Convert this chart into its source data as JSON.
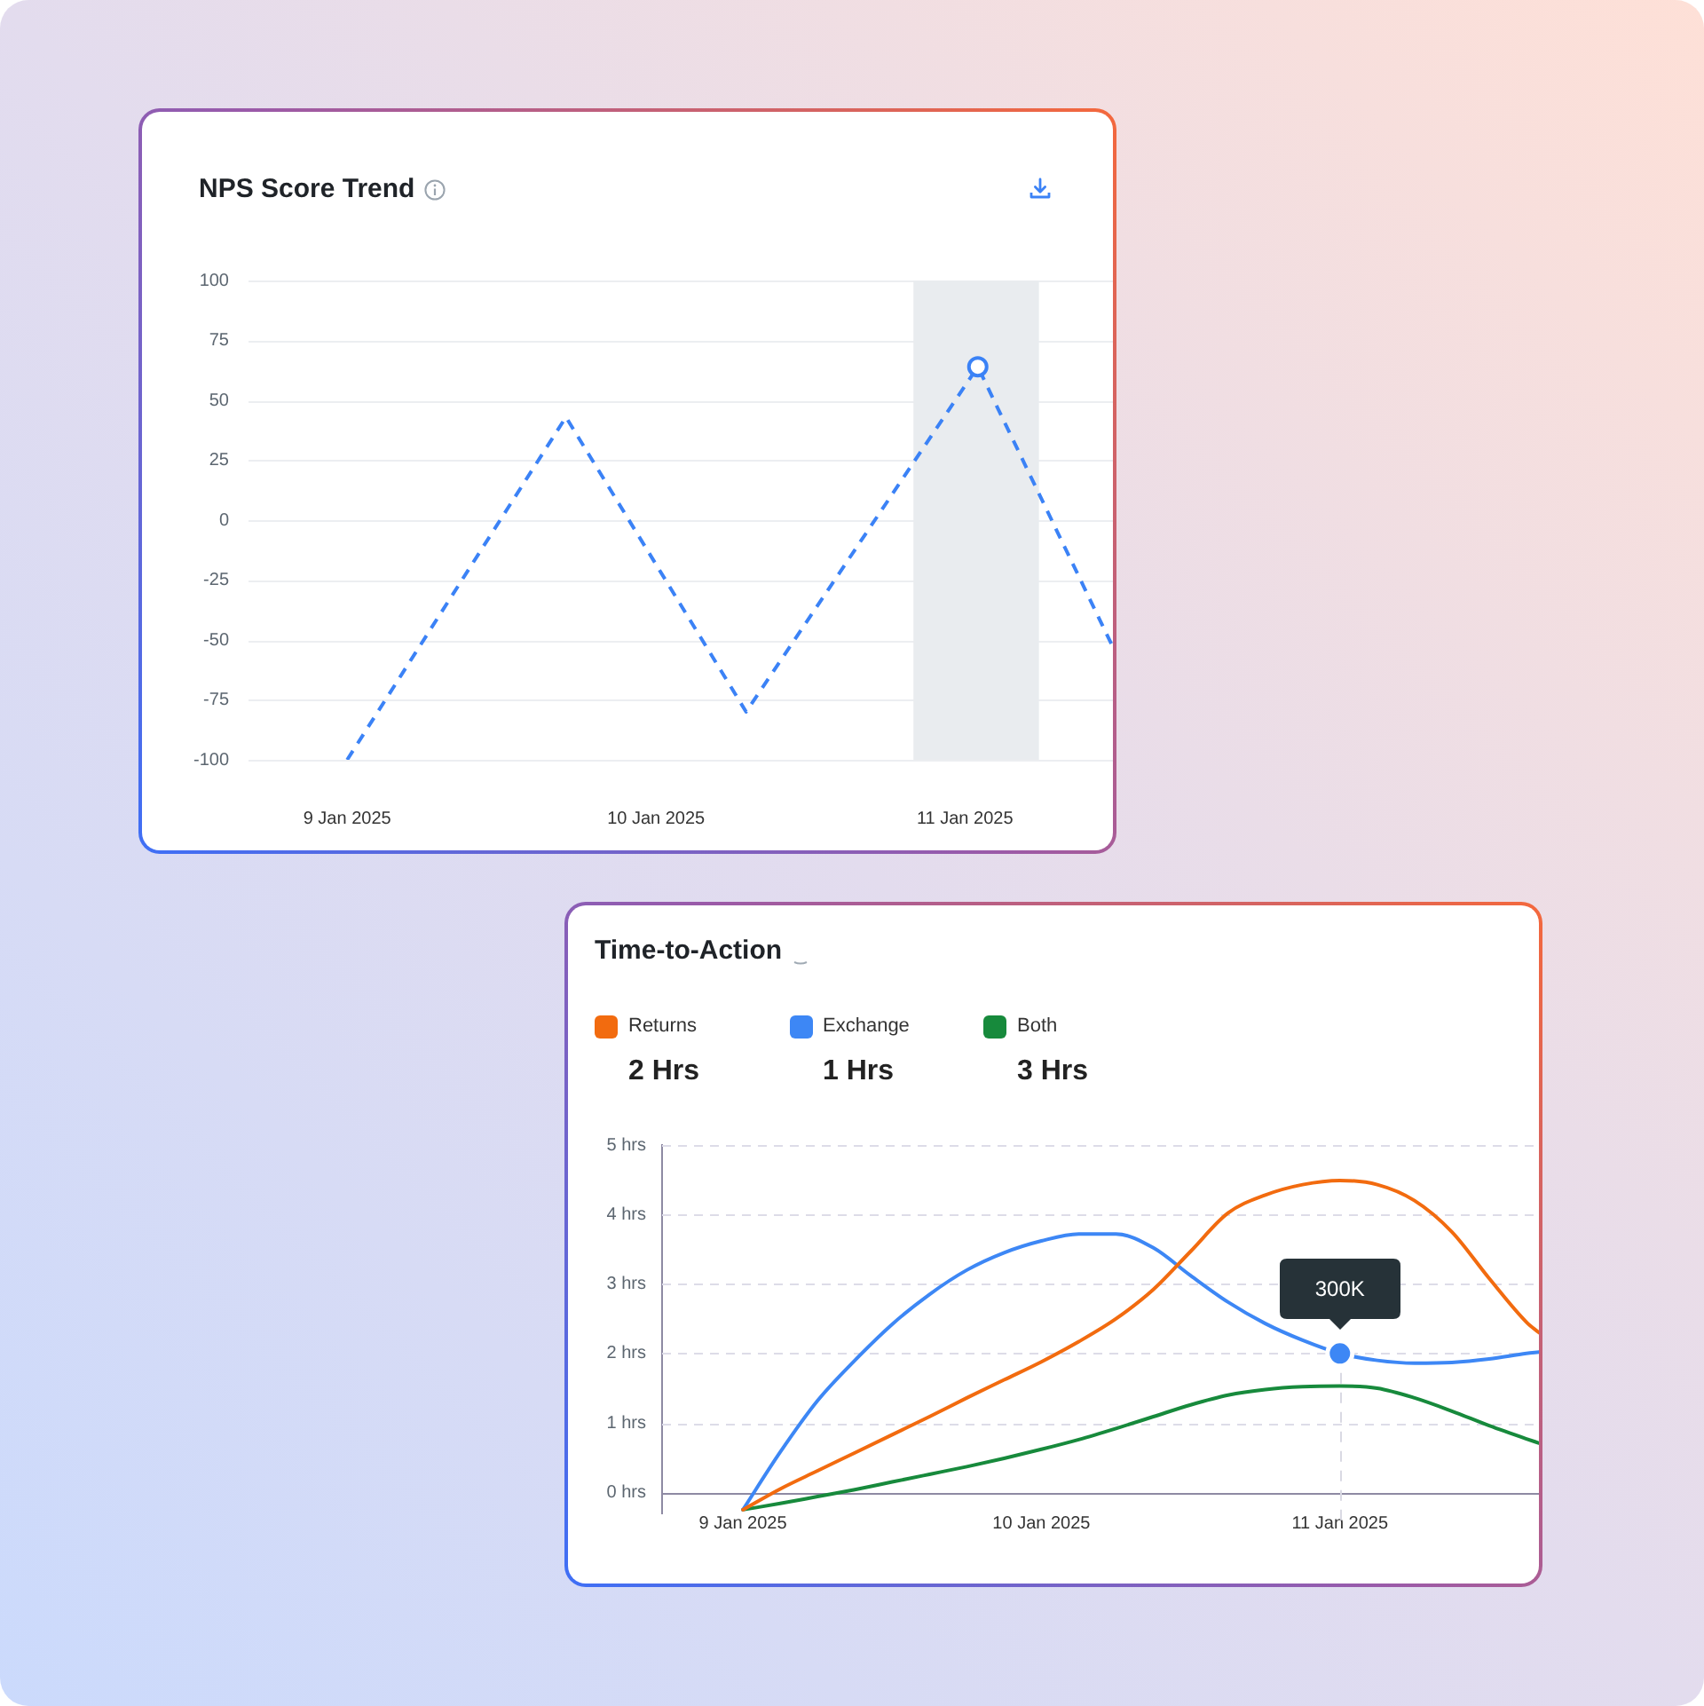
{
  "chart_data": [
    {
      "type": "line",
      "title": "NPS Score Trend",
      "x": [
        "2025-01-09T00:00",
        "2025-01-09T17:00",
        "2025-01-10T07:00",
        "2025-01-11T01:00",
        "2025-01-11T11:30"
      ],
      "series": [
        {
          "color": "#3b82f6",
          "values": [
            -100,
            43,
            -80,
            64,
            -53
          ]
        },
        {
          "type": "scatter",
          "color": "#3b82f6",
          "x": [
            "2025-01-11T01:00"
          ],
          "values": [
            64
          ],
          "marker": "circle"
        }
      ],
      "line_style": "dashed",
      "xlim": [
        "2025-01-08T16:20",
        "2025-01-11T11:30"
      ],
      "xticks": [
        {
          "value": "2025-01-09",
          "label": "9 Jan 2025"
        },
        {
          "value": "2025-01-10",
          "label": "10 Jan 2025"
        },
        {
          "value": "2025-01-11",
          "label": "11 Jan 2025"
        }
      ],
      "ylim": [
        -100,
        100
      ],
      "yticks": [
        -100,
        -75,
        -50,
        -25,
        0,
        25,
        50,
        75,
        100
      ],
      "grid": "y",
      "bands": [
        {
          "axis": "x",
          "from": "2025-01-10T20:00",
          "to": "2025-01-11T05:45",
          "color": "#e9ecef"
        }
      ]
    },
    {
      "type": "line",
      "title": "Time-to-Action",
      "x": [
        "2025-01-09T00:00",
        "2025-01-09T03:00",
        "2025-01-09T06:00",
        "2025-01-09T09:00",
        "2025-01-09T12:00",
        "2025-01-09T15:00",
        "2025-01-09T18:00",
        "2025-01-09T21:00",
        "2025-01-10T00:00",
        "2025-01-10T03:00",
        "2025-01-10T06:00",
        "2025-01-10T09:00",
        "2025-01-10T12:00",
        "2025-01-10T15:00",
        "2025-01-10T18:00",
        "2025-01-10T21:00",
        "2025-01-11T00:00",
        "2025-01-11T03:00",
        "2025-01-11T06:00",
        "2025-01-11T09:00",
        "2025-01-11T12:00",
        "2025-01-11T15:00",
        "2025-01-11T16:00"
      ],
      "series": [
        {
          "name": "Returns",
          "color": "#f26b0f",
          "values": [
            -0.25,
            0.05,
            0.31,
            0.57,
            0.83,
            1.09,
            1.36,
            1.62,
            1.88,
            2.17,
            2.5,
            2.92,
            3.47,
            4.02,
            4.28,
            4.43,
            4.49,
            4.43,
            4.2,
            3.75,
            3.08,
            2.45,
            2.3
          ]
        },
        {
          "name": "Exchange",
          "color": "#3d87f5",
          "values": [
            -0.25,
            0.58,
            1.32,
            1.9,
            2.42,
            2.85,
            3.2,
            3.45,
            3.62,
            3.72,
            3.72,
            3.52,
            3.12,
            2.74,
            2.43,
            2.19,
            2,
            1.9,
            1.86,
            1.87,
            1.92,
            2,
            2.02
          ]
        },
        {
          "name": "Both",
          "color": "#178a3c",
          "values": [
            -0.25,
            -0.16,
            -0.06,
            0.04,
            0.15,
            0.26,
            0.37,
            0.49,
            0.62,
            0.76,
            0.92,
            1.09,
            1.26,
            1.4,
            1.48,
            1.52,
            1.53,
            1.5,
            1.36,
            1.17,
            0.96,
            0.77,
            0.71
          ]
        },
        {
          "type": "scatter",
          "color": "#3d87f5",
          "x": [
            "2025-01-11T00:00"
          ],
          "values": [
            2
          ],
          "marker": "circle"
        }
      ],
      "xlim": [
        "2025-01-08T17:30",
        "2025-01-11T16:00"
      ],
      "xticks": [
        {
          "value": "2025-01-09",
          "label": "9 Jan 2025"
        },
        {
          "value": "2025-01-10",
          "label": "10 Jan 2025"
        },
        {
          "value": "2025-01-11",
          "label": "11 Jan 2025"
        }
      ],
      "ylim": [
        -0.3,
        5
      ],
      "yticks": [
        {
          "value": 0,
          "label": "0 hrs"
        },
        {
          "value": 1,
          "label": "1 hrs"
        },
        {
          "value": 2,
          "label": "2 hrs"
        },
        {
          "value": 3,
          "label": "3 hrs"
        },
        {
          "value": 4,
          "label": "4 hrs"
        },
        {
          "value": 5,
          "label": "5 hrs"
        }
      ],
      "grid": "y",
      "legend": "top left",
      "ref_lines": [
        {
          "axis": "x",
          "value": "2025-01-11T00:00",
          "color": "#d9d9e3",
          "line_style": "dashed"
        }
      ],
      "annotations": [
        "2 Hrs",
        "1 Hrs",
        "3 Hrs",
        {
          "text": "300K",
          "x": "2025-01-11T00:00",
          "y": 2
        }
      ]
    }
  ]
}
